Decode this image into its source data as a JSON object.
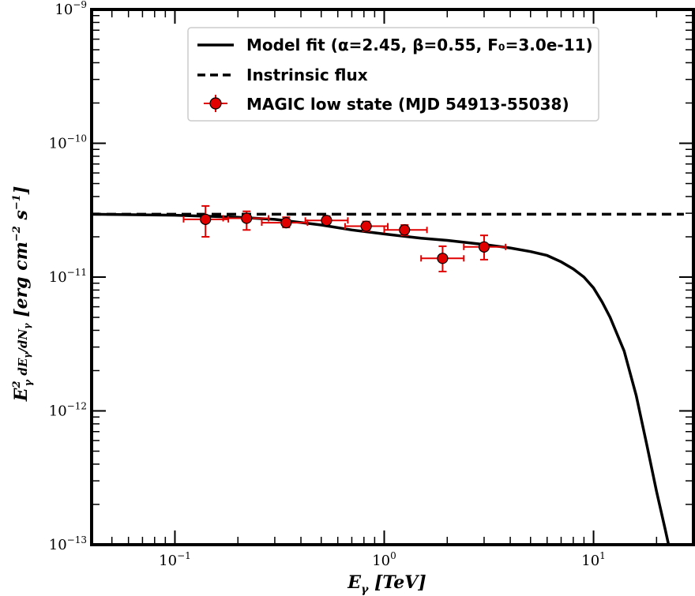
{
  "chart_data": {
    "type": "scatter",
    "x_scale": "log",
    "y_scale": "log",
    "xlim": [
      0.04,
      30
    ],
    "ylim": [
      1e-13,
      1e-09
    ],
    "xlabel": "E_γ [TeV]",
    "ylabel": "E²_γ dE_γ/dN_γ [erg cm⁻² s⁻¹]",
    "x_ticks": [
      {
        "value": 0.1,
        "label_base": "10",
        "label_exp": "−1"
      },
      {
        "value": 1,
        "label_base": "10",
        "label_exp": "0"
      },
      {
        "value": 10,
        "label_base": "10",
        "label_exp": "1"
      }
    ],
    "y_ticks": [
      {
        "value": 1e-13,
        "label_base": "10",
        "label_exp": "−13"
      },
      {
        "value": 1e-12,
        "label_base": "10",
        "label_exp": "−12"
      },
      {
        "value": 1e-11,
        "label_base": "10",
        "label_exp": "−11"
      },
      {
        "value": 1e-10,
        "label_base": "10",
        "label_exp": "−10"
      },
      {
        "value": 1e-09,
        "label_base": "10",
        "label_exp": "−9"
      }
    ],
    "legend_position": "top-right",
    "series": [
      {
        "name": "Model fit (α=2.45, β=0.55, F₀=3.0e-11)",
        "kind": "line",
        "style": "solid",
        "color": "#000000",
        "x": [
          0.04,
          0.1,
          0.2,
          0.3,
          0.5,
          0.7,
          1.0,
          1.5,
          2.0,
          3.0,
          4.0,
          5.0,
          6.0,
          7.0,
          8.0,
          9.0,
          10.0,
          11.0,
          12.0,
          14.0,
          16.0,
          18.0,
          20.0,
          22.0,
          24.0
        ],
        "y": [
          2.95e-11,
          2.9e-11,
          2.8e-11,
          2.7e-11,
          2.45e-11,
          2.25e-11,
          2.1e-11,
          1.95e-11,
          1.88e-11,
          1.75e-11,
          1.65e-11,
          1.55e-11,
          1.45e-11,
          1.3e-11,
          1.15e-11,
          1e-11,
          8.3e-12,
          6.5e-12,
          5e-12,
          2.8e-12,
          1.3e-12,
          5.5e-13,
          2.5e-13,
          1.3e-13,
          7e-14
        ]
      },
      {
        "name": "Instrinsic flux",
        "kind": "line",
        "style": "dashed",
        "color": "#000000",
        "x": [
          0.04,
          27
        ],
        "y": [
          2.95e-11,
          2.95e-11
        ]
      },
      {
        "name": "MAGIC low state (MJD 54913-55038)",
        "kind": "errorbar",
        "color": "#e00000",
        "points": [
          {
            "x": 0.14,
            "y": 2.7e-11,
            "x_lo": 0.11,
            "x_hi": 0.18,
            "y_lo": 2e-11,
            "y_hi": 3.4e-11
          },
          {
            "x": 0.22,
            "y": 2.75e-11,
            "x_lo": 0.17,
            "x_hi": 0.28,
            "y_lo": 2.25e-11,
            "y_hi": 3.1e-11
          },
          {
            "x": 0.34,
            "y": 2.55e-11,
            "x_lo": 0.26,
            "x_hi": 0.43,
            "y_lo": 2.35e-11,
            "y_hi": 2.8e-11
          },
          {
            "x": 0.53,
            "y": 2.65e-11,
            "x_lo": 0.42,
            "x_hi": 0.67,
            "y_lo": 2.5e-11,
            "y_hi": 2.85e-11
          },
          {
            "x": 0.82,
            "y": 2.4e-11,
            "x_lo": 0.65,
            "x_hi": 1.04,
            "y_lo": 2.2e-11,
            "y_hi": 2.6e-11
          },
          {
            "x": 1.25,
            "y": 2.25e-11,
            "x_lo": 1.0,
            "x_hi": 1.6,
            "y_lo": 2.05e-11,
            "y_hi": 2.45e-11
          },
          {
            "x": 1.9,
            "y": 1.38e-11,
            "x_lo": 1.5,
            "x_hi": 2.4,
            "y_lo": 1.1e-11,
            "y_hi": 1.7e-11
          },
          {
            "x": 3.0,
            "y": 1.68e-11,
            "x_lo": 2.4,
            "x_hi": 3.8,
            "y_lo": 1.35e-11,
            "y_hi": 2.05e-11
          }
        ]
      }
    ]
  }
}
